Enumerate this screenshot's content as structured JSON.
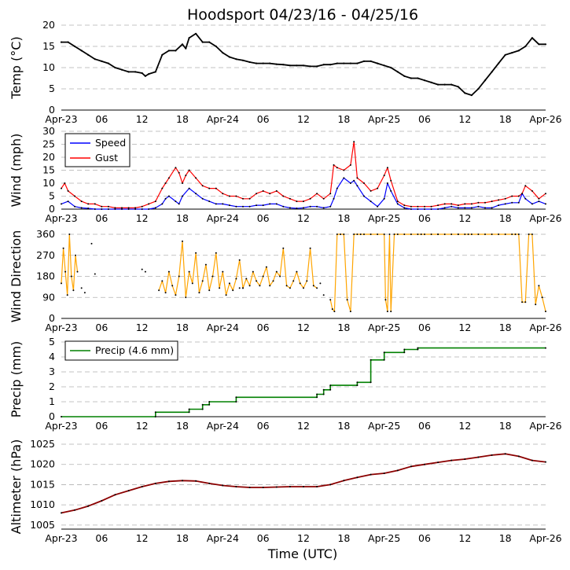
{
  "figure": {
    "title": "Hoodsport 04/23/16 - 04/25/16",
    "xlabel": "Time (UTC)",
    "xtick_labels": [
      "Apr-23",
      "06",
      "12",
      "18",
      "Apr-24",
      "06",
      "12",
      "18",
      "Apr-25",
      "06",
      "12",
      "18",
      "Apr-26"
    ]
  },
  "colors": {
    "temp": "#000000",
    "speed": "#0000ff",
    "gust": "#ff0000",
    "direction_line": "#ffa500",
    "direction_marker": "#000000",
    "precip": "#008000",
    "altimeter": "#8b0000",
    "grid": "#b0b0b0"
  },
  "chart_data": [
    {
      "type": "line",
      "id": "temp",
      "ylabel": "Temp ($^\\circ$C)",
      "ylabel_text": "Temp (°C)",
      "ylim": [
        0,
        20
      ],
      "yticks": [
        "0",
        "5",
        "10",
        "15",
        "20"
      ],
      "x_unit": "hours since 2016-04-23 00:00 UTC",
      "xlim": [
        0,
        72
      ],
      "grid": "y dashed",
      "series": [
        {
          "x": [
            0,
            1,
            2,
            3,
            4,
            5,
            6,
            7,
            8,
            9,
            10,
            11,
            12,
            12.5,
            13,
            14,
            15,
            16,
            17,
            18,
            18.5,
            19,
            20,
            21,
            22,
            23,
            24,
            25,
            26,
            27,
            28,
            29,
            30,
            31,
            32,
            33,
            34,
            35,
            36,
            37,
            38,
            39,
            40,
            41,
            42,
            43,
            44,
            45,
            46,
            47,
            48,
            49,
            50,
            51,
            52,
            53,
            54,
            55,
            56,
            57,
            58,
            59,
            60,
            61,
            62,
            63,
            64,
            65,
            66,
            67,
            68,
            69,
            70,
            71,
            72
          ],
          "values": [
            16,
            16,
            15,
            14,
            13,
            12,
            11.5,
            11,
            10,
            9.5,
            9,
            9,
            8.7,
            8,
            8.5,
            9,
            13,
            14,
            14,
            15.5,
            14.5,
            17,
            18,
            16,
            16,
            15,
            13.5,
            12.5,
            12,
            11.7,
            11.3,
            11,
            11,
            11,
            10.8,
            10.7,
            10.5,
            10.5,
            10.5,
            10.3,
            10.3,
            10.7,
            10.7,
            11,
            11,
            11,
            11,
            11.5,
            11.5,
            11,
            10.5,
            10,
            9,
            8,
            7.5,
            7.5,
            7,
            6.5,
            6,
            6,
            6,
            5.5,
            4,
            3.5,
            5,
            7,
            9,
            11,
            13,
            13.5,
            14,
            15,
            17,
            15.5,
            15.5
          ]
        }
      ]
    },
    {
      "type": "line",
      "id": "wind",
      "ylabel": "Wind (mph)",
      "ylim": [
        0,
        30
      ],
      "yticks": [
        "0",
        "5",
        "10",
        "15",
        "20",
        "25",
        "30"
      ],
      "xlim": [
        0,
        72
      ],
      "legend": "top-left",
      "series": [
        {
          "name": "Speed",
          "x": [
            0,
            1,
            2,
            3,
            4,
            5,
            6,
            7,
            8,
            9,
            10,
            11,
            12,
            13,
            14,
            15,
            15.5,
            16,
            17,
            17.5,
            18,
            19,
            20,
            21,
            22,
            23,
            24,
            25,
            26,
            27,
            28,
            29,
            30,
            31,
            32,
            33,
            34,
            35,
            36,
            37,
            38,
            39,
            40,
            40.5,
            41,
            42,
            43,
            43.5,
            44,
            45,
            46,
            47,
            48,
            48.5,
            49,
            50,
            51,
            52,
            53,
            54,
            55,
            56,
            57,
            58,
            59,
            60,
            61,
            62,
            63,
            64,
            65,
            66,
            67,
            68,
            68.5,
            69,
            70,
            71,
            72
          ],
          "values": [
            2,
            3,
            1,
            0.5,
            0.3,
            0,
            0,
            0,
            0,
            0,
            0,
            0,
            0,
            0,
            0.5,
            2,
            4,
            5,
            3,
            2,
            5,
            8,
            6,
            4,
            3,
            2,
            2,
            1.5,
            1,
            1,
            1,
            1.5,
            1.5,
            2,
            2,
            1,
            0.5,
            0.3,
            0.5,
            1,
            1,
            0.5,
            1,
            4,
            8,
            12,
            10,
            11,
            9,
            5,
            3,
            1,
            4,
            10,
            7,
            2,
            0.5,
            0,
            0,
            0,
            0,
            0,
            0.5,
            1,
            0.5,
            0.5,
            0.5,
            1,
            0.5,
            0.5,
            1.5,
            2,
            2.5,
            2.5,
            6,
            4,
            2,
            3,
            2
          ]
        },
        {
          "name": "Gust",
          "x": [
            0,
            0.5,
            1,
            2,
            3,
            4,
            5,
            6,
            7,
            8,
            9,
            10,
            11,
            12,
            13,
            14,
            15,
            15.5,
            16,
            17,
            17.5,
            18,
            18.5,
            19,
            20,
            21,
            22,
            23,
            24,
            25,
            26,
            27,
            28,
            29,
            30,
            31,
            32,
            33,
            34,
            35,
            36,
            37,
            38,
            39,
            40,
            40.5,
            41,
            42,
            43,
            43.5,
            44,
            45,
            46,
            47,
            48,
            48.5,
            49,
            50,
            51,
            52,
            53,
            54,
            55,
            56,
            57,
            58,
            59,
            60,
            61,
            62,
            63,
            64,
            65,
            66,
            67,
            68,
            68.5,
            69,
            70,
            71,
            72
          ],
          "values": [
            8,
            10,
            7,
            5,
            3,
            2,
            2,
            1,
            1,
            0.5,
            0.5,
            0.5,
            0.5,
            1,
            2,
            3,
            8,
            10,
            12,
            16,
            14,
            10,
            13,
            15,
            12,
            9,
            8,
            8,
            6,
            5,
            5,
            4,
            4,
            6,
            7,
            6,
            7,
            5,
            4,
            3,
            3,
            4,
            6,
            4,
            6,
            17,
            16,
            15,
            17,
            26,
            12,
            10,
            7,
            8,
            13,
            16,
            11,
            3,
            1.5,
            1,
            1,
            1,
            1,
            1.5,
            2,
            2,
            1.5,
            2,
            2,
            2.5,
            2.5,
            3,
            3.5,
            4,
            5,
            5,
            6,
            9,
            7,
            4,
            6
          ]
        }
      ]
    },
    {
      "type": "line",
      "id": "direction",
      "ylabel": "Wind Direction",
      "ylim": [
        0,
        360
      ],
      "yticks": [
        "0",
        "90",
        "180",
        "270",
        "360"
      ],
      "xlim": [
        0,
        72
      ],
      "segments": [
        {
          "x": [
            0,
            0.3,
            0.6,
            0.9,
            1.2,
            1.5,
            1.8,
            2.1,
            2.4
          ],
          "values": [
            150,
            300,
            200,
            100,
            360,
            180,
            120,
            270,
            200
          ]
        },
        {
          "x": [
            14.5,
            15,
            15.5,
            16,
            16.5,
            17,
            17.5,
            18,
            18.5,
            19,
            19.5,
            20,
            20.5,
            21,
            21.5,
            22,
            22.5,
            23,
            23.5,
            24,
            24.5,
            25,
            25.5,
            26,
            26.5,
            27,
            27.5,
            28,
            28.5,
            29,
            29.5,
            30,
            30.5,
            31,
            31.5,
            32,
            32.5,
            33,
            33.5,
            34,
            34.5,
            35,
            35.5,
            36,
            36.5,
            37,
            37.5,
            38
          ],
          "values": [
            120,
            160,
            110,
            200,
            140,
            100,
            180,
            330,
            90,
            200,
            150,
            280,
            110,
            160,
            230,
            120,
            180,
            280,
            130,
            200,
            100,
            150,
            120,
            170,
            250,
            130,
            170,
            140,
            200,
            160,
            140,
            180,
            220,
            140,
            160,
            200,
            180,
            300,
            140,
            130,
            160,
            200,
            150,
            130,
            160,
            300,
            140,
            130
          ]
        },
        {
          "x": [
            40,
            40.3,
            40.6,
            41,
            41.5,
            42,
            42.5,
            43,
            43.5,
            44,
            44.5,
            45,
            46,
            47,
            48,
            48.2,
            48.5,
            48.8,
            49,
            49.5,
            50,
            51,
            52,
            53,
            54,
            55,
            56,
            57,
            58,
            59,
            60,
            61,
            62,
            63,
            64,
            65,
            66,
            67,
            67.5,
            68,
            68.5,
            69,
            69.5,
            70,
            70.5,
            71,
            71.5,
            72
          ],
          "values": [
            80,
            40,
            30,
            360,
            360,
            360,
            80,
            30,
            360,
            360,
            360,
            360,
            360,
            360,
            360,
            80,
            30,
            360,
            30,
            360,
            360,
            360,
            360,
            360,
            360,
            360,
            360,
            360,
            360,
            360,
            360,
            360,
            360,
            360,
            360,
            360,
            360,
            360,
            360,
            360,
            70,
            70,
            360,
            360,
            60,
            140,
            90,
            30
          ]
        }
      ],
      "isolated_points": {
        "x": [
          3,
          3.5,
          4.5,
          5,
          12,
          12.5,
          26.5,
          27,
          38.5,
          39,
          53.5,
          56,
          59,
          60.5
        ],
        "values": [
          130,
          110,
          320,
          190,
          210,
          200,
          130,
          130,
          150,
          100,
          360,
          360,
          360,
          360
        ]
      }
    },
    {
      "type": "line",
      "id": "precip",
      "ylabel": "Precip (mm)",
      "ylim": [
        0,
        5
      ],
      "yticks": [
        "0",
        "1",
        "2",
        "3",
        "4",
        "5"
      ],
      "xlim": [
        0,
        72
      ],
      "legend": "top-left",
      "series": [
        {
          "name": "Precip (4.6 mm)",
          "x": [
            0,
            14,
            14,
            19,
            19,
            21,
            21,
            22,
            22,
            26,
            26,
            38,
            38,
            39,
            39,
            40,
            40,
            44,
            44,
            46,
            46,
            48,
            48,
            51,
            51,
            53,
            53,
            72
          ],
          "values": [
            0,
            0,
            0.3,
            0.3,
            0.5,
            0.5,
            0.8,
            0.8,
            1.0,
            1.0,
            1.3,
            1.3,
            1.5,
            1.5,
            1.8,
            1.8,
            2.1,
            2.1,
            2.3,
            2.3,
            3.8,
            3.8,
            4.3,
            4.3,
            4.5,
            4.5,
            4.6,
            4.6
          ]
        }
      ]
    },
    {
      "type": "line",
      "id": "altimeter",
      "ylabel": "Altimeter (hPa)",
      "ylim": [
        1004,
        1025
      ],
      "yticks": [
        "1005",
        "1010",
        "1015",
        "1020",
        "1025"
      ],
      "xlim": [
        0,
        72
      ],
      "series": [
        {
          "x": [
            0,
            2,
            4,
            6,
            8,
            10,
            12,
            14,
            16,
            18,
            20,
            22,
            24,
            26,
            28,
            30,
            32,
            34,
            36,
            38,
            40,
            42,
            44,
            46,
            48,
            50,
            52,
            54,
            56,
            58,
            60,
            62,
            64,
            66,
            68,
            70,
            72
          ],
          "values": [
            1008,
            1008.7,
            1009.7,
            1011,
            1012.5,
            1013.5,
            1014.5,
            1015.3,
            1015.8,
            1016,
            1015.9,
            1015.3,
            1014.8,
            1014.5,
            1014.3,
            1014.3,
            1014.4,
            1014.5,
            1014.5,
            1014.5,
            1015,
            1016,
            1016.8,
            1017.5,
            1017.8,
            1018.5,
            1019.5,
            1020,
            1020.5,
            1021,
            1021.3,
            1021.8,
            1022.3,
            1022.6,
            1022,
            1021,
            1020.6
          ]
        }
      ]
    }
  ]
}
